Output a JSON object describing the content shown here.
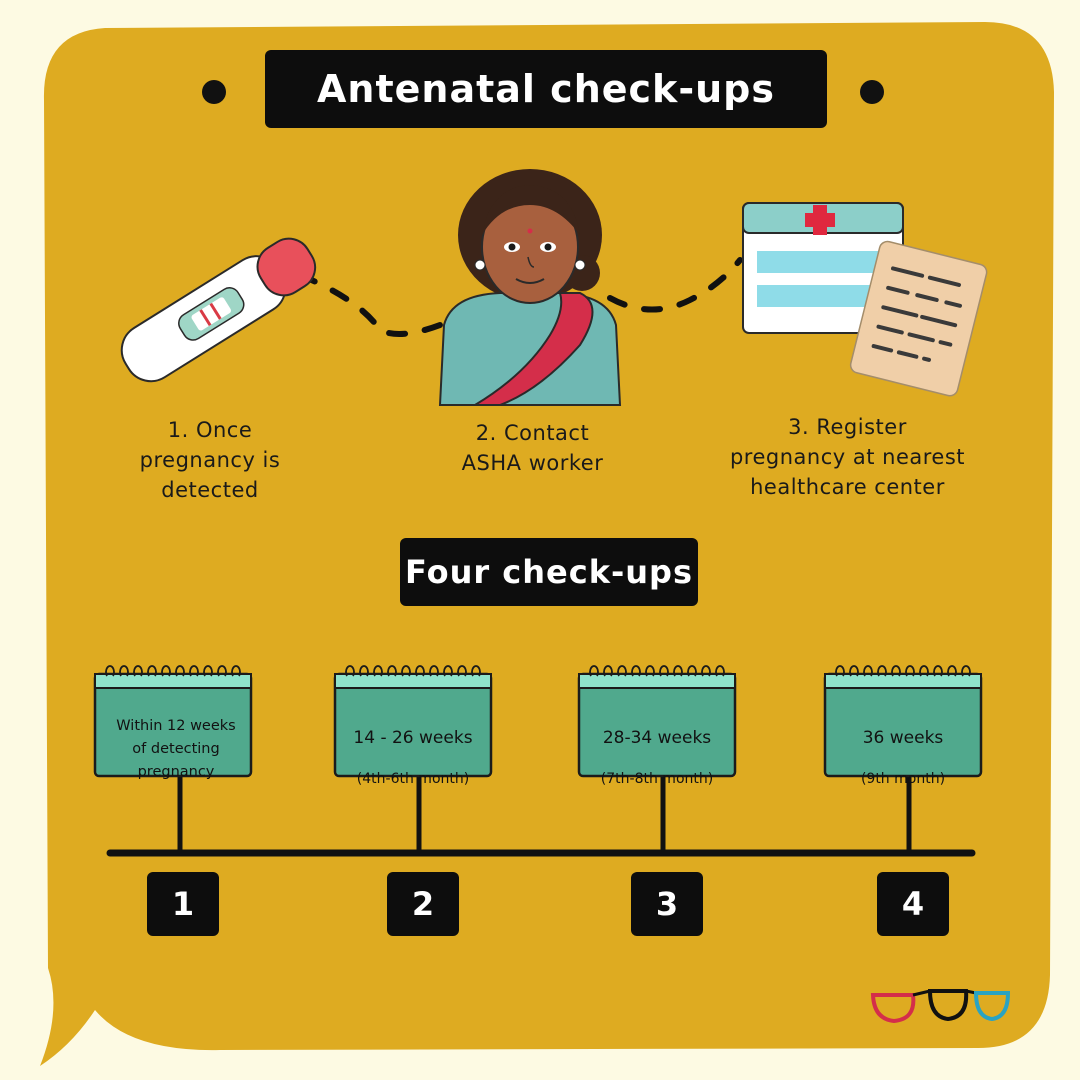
{
  "title": "Antenatal check-ups",
  "subtitle": "Four check-ups",
  "steps": [
    {
      "text": "1. Once\npregnancy is\ndetected",
      "icon": "pregnancy-test-icon"
    },
    {
      "text": "2. Contact\nASHA worker",
      "icon": "asha-worker-illustration"
    },
    {
      "text": "3. Register\npregnancy at nearest\nhealthcare center",
      "icon": "healthcare-register-icon"
    }
  ],
  "checkups": [
    {
      "number": "1",
      "main": "Within 12 weeks\nof detecting\npregnancy",
      "sub": ""
    },
    {
      "number": "2",
      "main": "14 - 26 weeks",
      "sub": "(4th-6th month)"
    },
    {
      "number": "3",
      "main": "28-34 weeks",
      "sub": "(7th-8th month)"
    },
    {
      "number": "4",
      "main": "36 weeks",
      "sub": "(9th month)"
    }
  ],
  "colors": {
    "page_background": "#fdfae3",
    "speech_bubble": "#deab21",
    "label_box": "#0d0d0d",
    "calendar_green": "#50a98d",
    "calendar_rings": "#8fe3cb",
    "test_tip": "#e8505b"
  },
  "logo": "glasses-logo"
}
